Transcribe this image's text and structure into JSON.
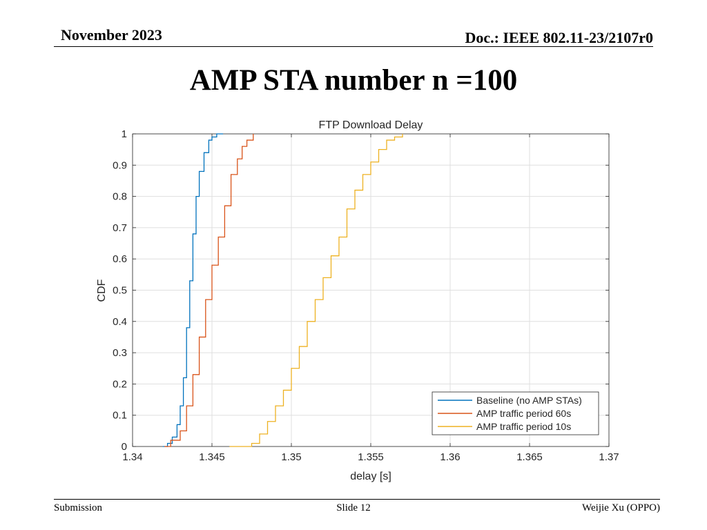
{
  "header": {
    "date": "November 2023",
    "doc": "Doc.: IEEE 802.11-23/2107r0"
  },
  "slide_title": "AMP STA number n =100",
  "footer": {
    "left": "Submission",
    "center": "Slide 12",
    "right": "Weijie Xu (OPPO)"
  },
  "colors": {
    "baseline": "#0072BD",
    "amp60": "#D95319",
    "amp10": "#EDB120",
    "grid": "#dfdfdf",
    "axis": "#262626"
  },
  "chart_data": {
    "type": "line",
    "title": "FTP Download Delay",
    "xlabel": "delay [s]",
    "ylabel": "CDF",
    "xlim": [
      1.34,
      1.37
    ],
    "ylim": [
      0,
      1
    ],
    "xticks": [
      1.34,
      1.345,
      1.35,
      1.355,
      1.36,
      1.365,
      1.37
    ],
    "xtick_labels": [
      "1.34",
      "1.345",
      "1.35",
      "1.355",
      "1.36",
      "1.365",
      "1.37"
    ],
    "yticks": [
      0,
      0.1,
      0.2,
      0.3,
      0.4,
      0.5,
      0.6,
      0.7,
      0.8,
      0.9,
      1
    ],
    "ytick_labels": [
      "0",
      "0.1",
      "0.2",
      "0.3",
      "0.4",
      "0.5",
      "0.6",
      "0.7",
      "0.8",
      "0.9",
      "1"
    ],
    "grid": true,
    "legend_position": "bottom-right",
    "series": [
      {
        "name": "Baseline (no AMP STAs)",
        "color": "#0072BD",
        "x": [
          1.3419,
          1.3422,
          1.3425,
          1.3428,
          1.343,
          1.3432,
          1.3434,
          1.3436,
          1.3438,
          1.344,
          1.3442,
          1.3445,
          1.3448,
          1.345,
          1.3453,
          1.3457
        ],
        "y": [
          0,
          0.01,
          0.03,
          0.07,
          0.13,
          0.22,
          0.38,
          0.53,
          0.68,
          0.8,
          0.88,
          0.94,
          0.98,
          0.99,
          1,
          1
        ]
      },
      {
        "name": "AMP traffic period 60s",
        "color": "#D95319",
        "x": [
          1.342,
          1.3424,
          1.343,
          1.3434,
          1.3438,
          1.3442,
          1.3446,
          1.345,
          1.3454,
          1.3458,
          1.3462,
          1.3466,
          1.3469,
          1.3472,
          1.3476
        ],
        "y": [
          0,
          0.02,
          0.05,
          0.13,
          0.23,
          0.35,
          0.47,
          0.58,
          0.67,
          0.77,
          0.87,
          0.92,
          0.96,
          0.98,
          1
        ]
      },
      {
        "name": "AMP traffic period 10s",
        "color": "#EDB120",
        "x": [
          1.3461,
          1.3475,
          1.348,
          1.3485,
          1.349,
          1.3495,
          1.35,
          1.3505,
          1.351,
          1.3515,
          1.352,
          1.3525,
          1.353,
          1.3535,
          1.354,
          1.3545,
          1.355,
          1.3555,
          1.356,
          1.3565,
          1.357
        ],
        "y": [
          0,
          0.01,
          0.04,
          0.08,
          0.13,
          0.18,
          0.25,
          0.32,
          0.4,
          0.47,
          0.54,
          0.61,
          0.67,
          0.76,
          0.82,
          0.87,
          0.91,
          0.95,
          0.98,
          0.99,
          1
        ]
      }
    ]
  }
}
